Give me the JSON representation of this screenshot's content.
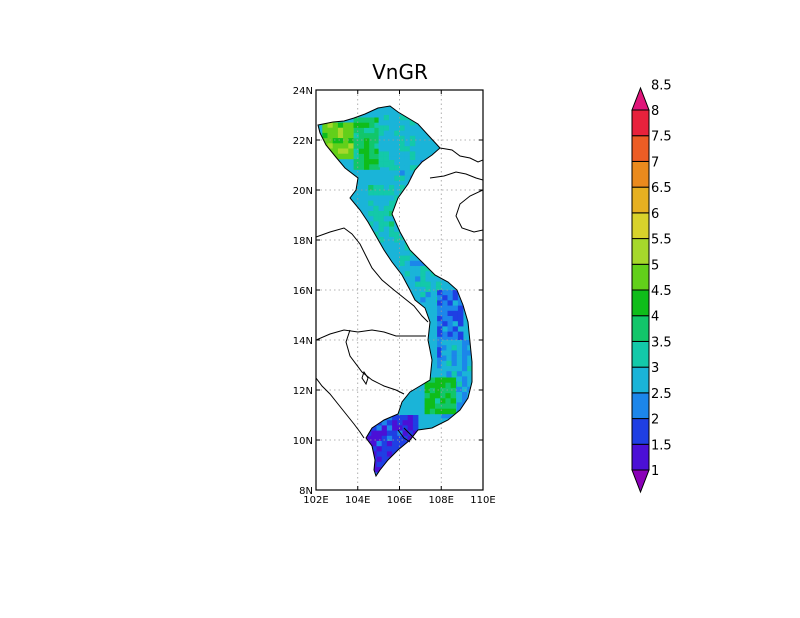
{
  "map": {
    "title": "VnGR",
    "lon_ticks": [
      "102E",
      "104E",
      "106E",
      "108E",
      "110E"
    ],
    "lat_ticks": [
      "8N",
      "10N",
      "12N",
      "14N",
      "16N",
      "18N",
      "20N",
      "22N",
      "24N"
    ],
    "lon_range": [
      102,
      110
    ],
    "lat_range": [
      8,
      24
    ],
    "gridlines": "dotted"
  },
  "colorbar": {
    "levels": [
      "1",
      "1.5",
      "2",
      "2.5",
      "3",
      "3.5",
      "4",
      "4.5",
      "5",
      "5.5",
      "6",
      "6.5",
      "7",
      "7.5",
      "8",
      "8.5"
    ],
    "colors": [
      "#8a00b8",
      "#4b10d6",
      "#1f3fe3",
      "#1c86ea",
      "#1ab4d8",
      "#13c9a9",
      "#12c66a",
      "#0fbd1a",
      "#62d01a",
      "#a6d82b",
      "#d8d22b",
      "#e6b021",
      "#ea8a1d",
      "#ec5d25",
      "#e8223c",
      "#e0157a"
    ]
  },
  "chart_data": {
    "type": "heatmap",
    "title": "VnGR",
    "xlabel": "",
    "ylabel": "",
    "xlim": [
      102,
      110
    ],
    "ylim": [
      8,
      24
    ],
    "x_ticks": [
      "102E",
      "104E",
      "106E",
      "108E",
      "110E"
    ],
    "y_ticks": [
      "8N",
      "10N",
      "12N",
      "14N",
      "16N",
      "18N",
      "20N",
      "22N",
      "24N"
    ],
    "colorbar_levels": [
      1,
      1.5,
      2,
      2.5,
      3,
      3.5,
      4,
      4.5,
      5,
      5.5,
      6,
      6.5,
      7,
      7.5,
      8,
      8.5
    ],
    "regions": [
      {
        "lon": [
          102.3,
          103.8
        ],
        "lat": [
          21.3,
          22.7
        ],
        "value": 5.3
      },
      {
        "lon": [
          103.8,
          105.0
        ],
        "lat": [
          21.0,
          22.9
        ],
        "value": 4.3
      },
      {
        "lon": [
          105.0,
          106.5
        ],
        "lat": [
          21.0,
          23.0
        ],
        "value": 3.5
      },
      {
        "lon": [
          105.5,
          107.0
        ],
        "lat": [
          20.2,
          21.2
        ],
        "value": 3.2
      },
      {
        "lon": [
          104.5,
          106.0
        ],
        "lat": [
          18.0,
          20.2
        ],
        "value": 3.6
      },
      {
        "lon": [
          106.0,
          108.0
        ],
        "lat": [
          15.5,
          18.0
        ],
        "value": 3.4
      },
      {
        "lon": [
          107.8,
          108.8
        ],
        "lat": [
          13.0,
          16.0
        ],
        "value": 2.6
      },
      {
        "lon": [
          108.0,
          109.4
        ],
        "lat": [
          11.0,
          14.0
        ],
        "value": 3.1
      },
      {
        "lon": [
          107.2,
          108.5
        ],
        "lat": [
          11.2,
          12.5
        ],
        "value": 4.4
      },
      {
        "lon": [
          104.4,
          106.8
        ],
        "lat": [
          8.5,
          11.0
        ],
        "value": 2.2
      }
    ]
  }
}
